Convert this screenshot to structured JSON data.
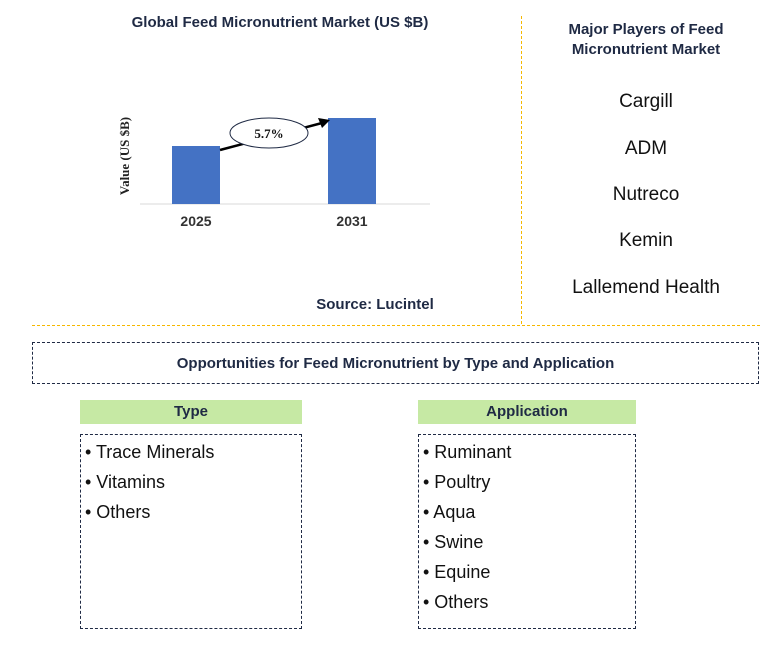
{
  "chart_data": {
    "type": "bar",
    "title": "Global Feed Micronutrient Market (US $B)",
    "ylabel": "Value (US $B)",
    "categories": [
      "2025",
      "2031"
    ],
    "values": [
      0.58,
      0.86
    ],
    "ylim": [
      0,
      1.0
    ],
    "annotation": "5.7%",
    "bar_color": "#4472c4",
    "grid": false
  },
  "source": "Source: Lucintel",
  "players": {
    "title": "Major Players of Feed Micronutrient Market",
    "items": [
      "Cargill",
      "ADM",
      "Nutreco",
      "Kemin",
      "Lallemend Health"
    ]
  },
  "opportunities": {
    "title": "Opportunities for Feed Micronutrient by Type and Application",
    "type": {
      "heading": "Type",
      "items": [
        "• Trace Minerals",
        "• Vitamins",
        "• Others"
      ]
    },
    "application": {
      "heading": "Application",
      "items": [
        "• Ruminant",
        "• Poultry",
        "• Aqua",
        "• Swine",
        "• Equine",
        "• Others"
      ]
    }
  }
}
